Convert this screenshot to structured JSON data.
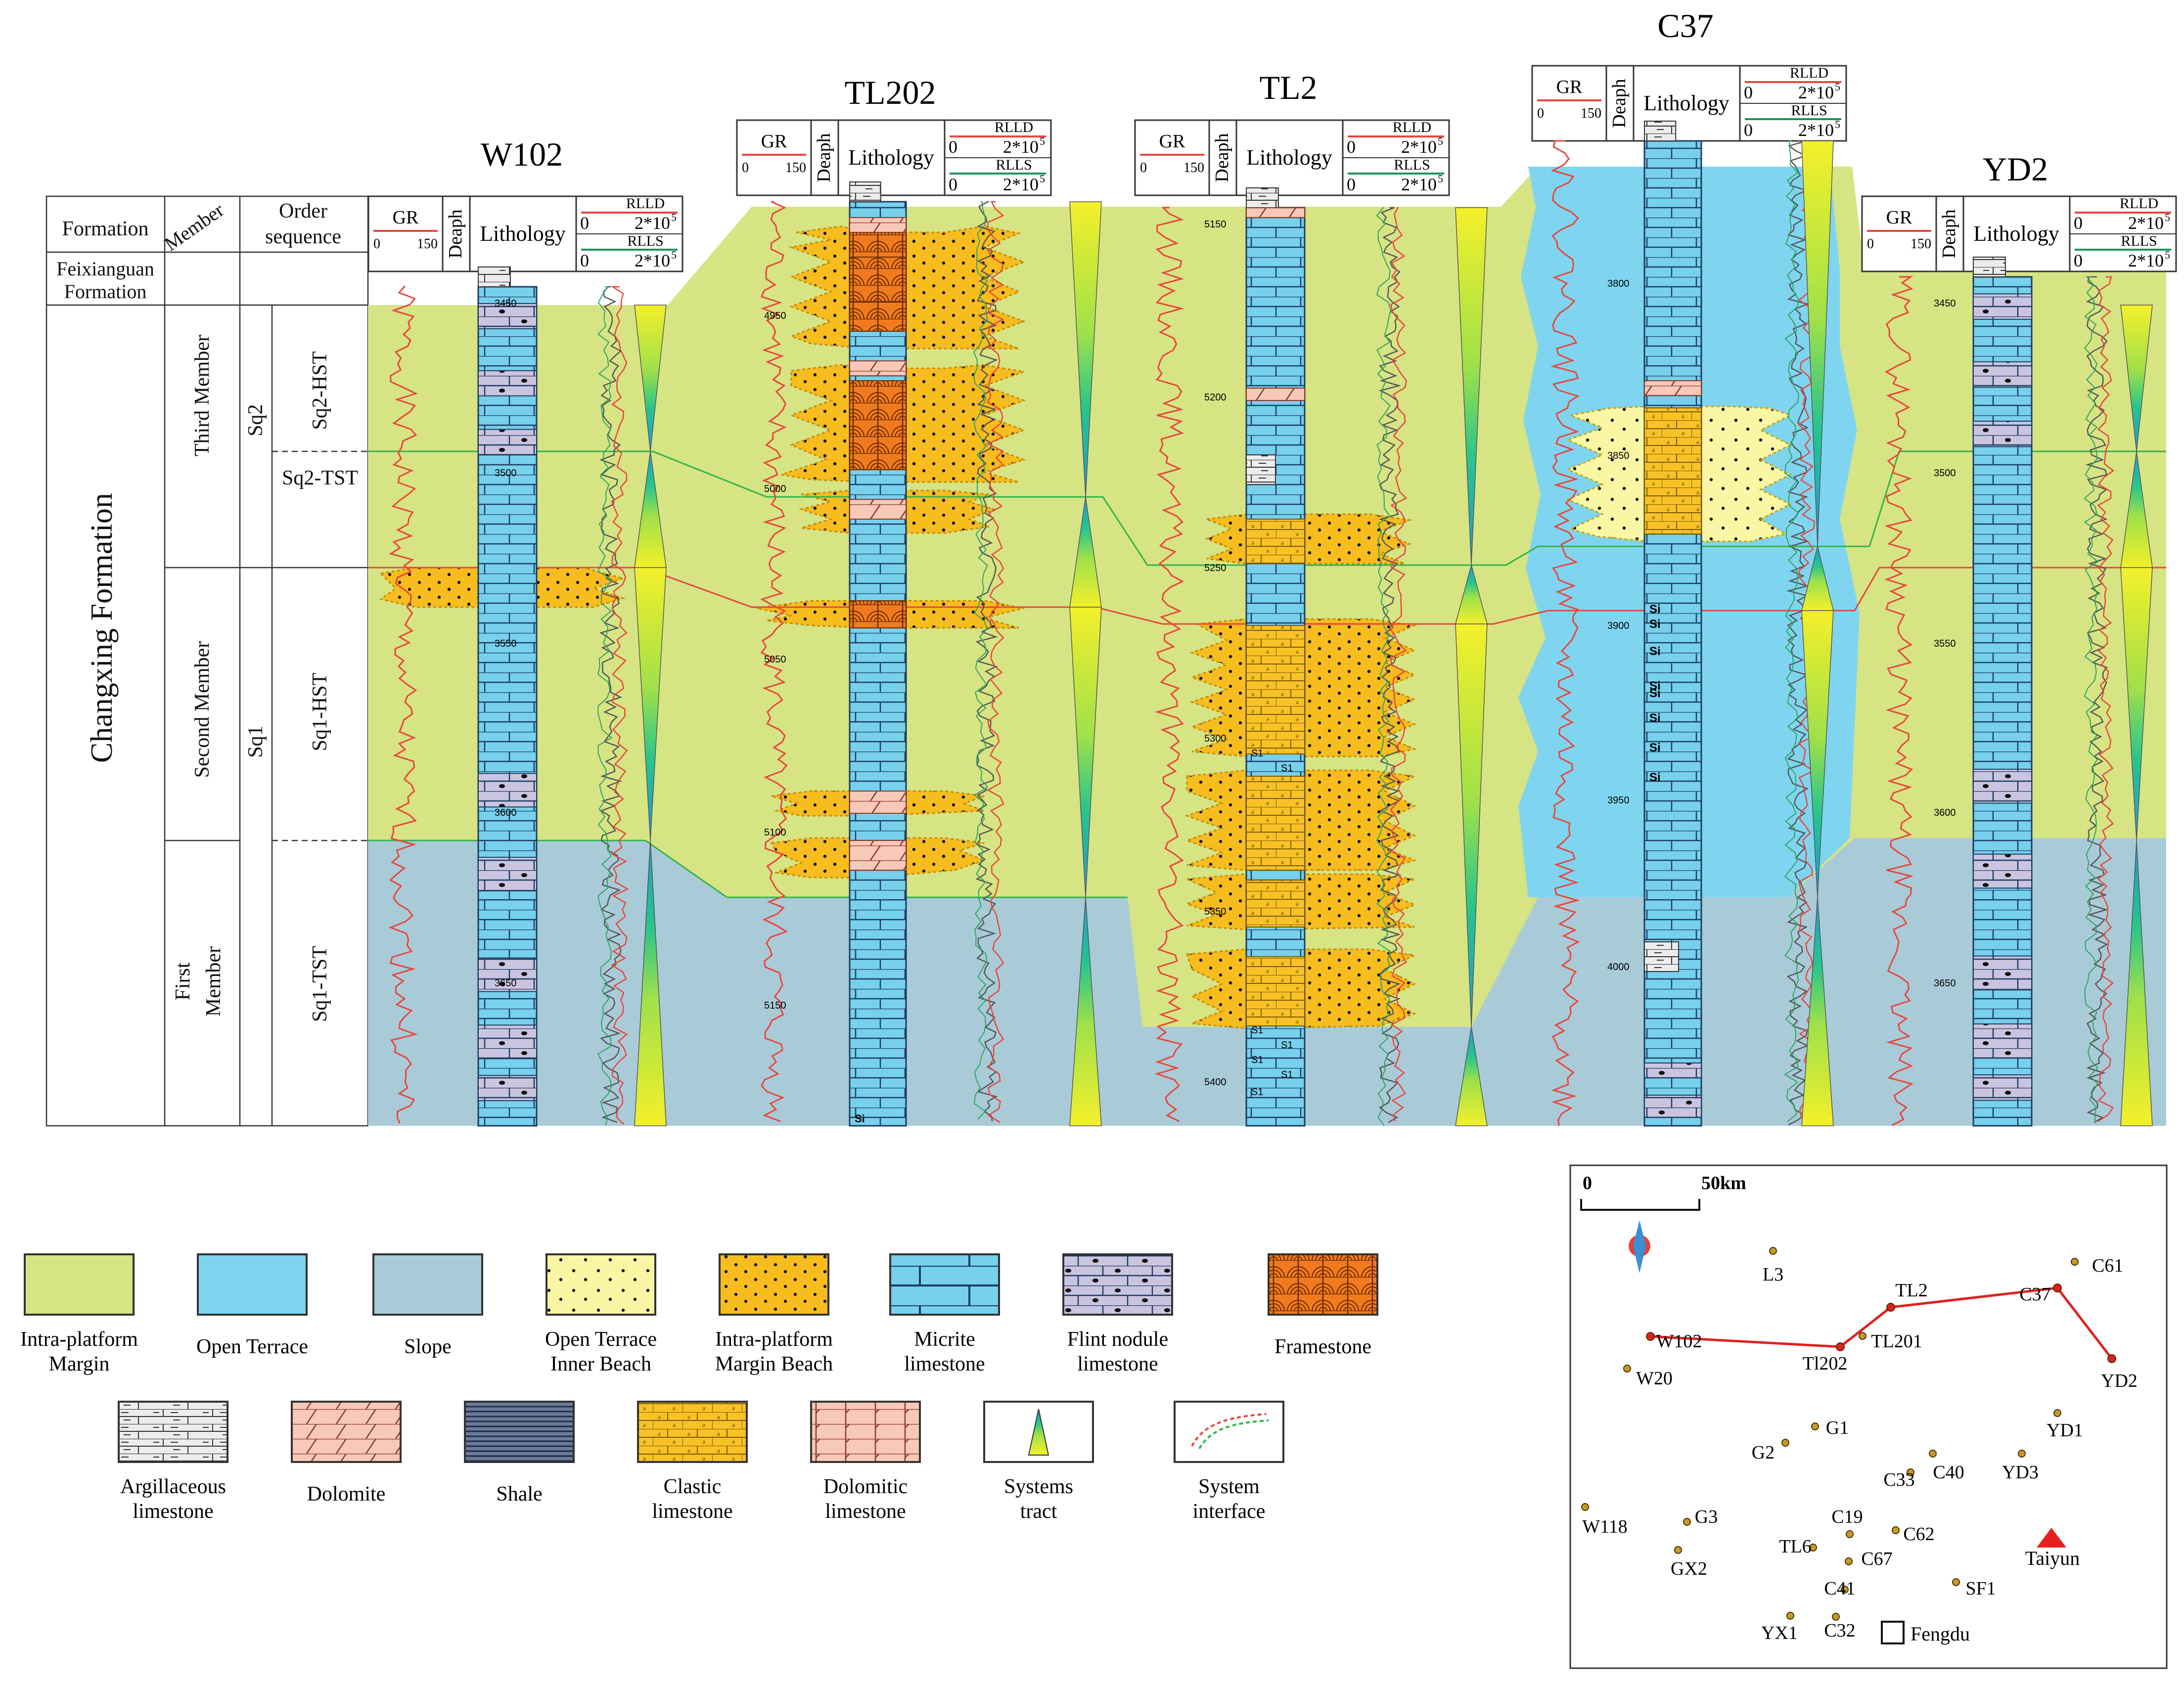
{
  "columns": {
    "formation": "Formation",
    "member": "Member",
    "order_sequence_line1": "Order",
    "order_sequence_line2": "sequence"
  },
  "formations": {
    "feixianguan_line1": "Feixianguan",
    "feixianguan_line2": "Formation",
    "changxing": "Changxing Formation"
  },
  "members": {
    "third": "Third Member",
    "second": "Second Member",
    "first_line1": "First",
    "first_line2": "Member"
  },
  "sequences": {
    "sq2": "Sq2",
    "sq1": "Sq1",
    "sq2_hst": "Sq2-HST",
    "sq2_tst": "Sq2-TST",
    "sq1_hst": "Sq1-HST",
    "sq1_tst": "Sq1-TST"
  },
  "log_header": {
    "gr": "GR",
    "gr_min": "0",
    "gr_max": "150",
    "depth": "Deaph",
    "lithology": "Lithology",
    "rlld": "RLLD",
    "rlls": "RLLS",
    "res_min": "0",
    "res_max": "2*10",
    "res_exp": "5"
  },
  "wells": [
    {
      "name": "W102",
      "depths": [
        "3450",
        "3500",
        "3550",
        "3600",
        "3650"
      ]
    },
    {
      "name": "TL202",
      "depths": [
        "4950",
        "5000",
        "5050",
        "5100",
        "5150"
      ]
    },
    {
      "name": "TL2",
      "depths": [
        "5150",
        "5200",
        "5250",
        "5300",
        "5350",
        "5400"
      ]
    },
    {
      "name": "C37",
      "depths": [
        "3800",
        "3850",
        "3900",
        "3950",
        "4000"
      ]
    },
    {
      "name": "YD2",
      "depths": [
        "3450",
        "3500",
        "3550",
        "3600",
        "3650"
      ]
    }
  ],
  "litho_symbols": {
    "si": "Si",
    "s1": "S1"
  },
  "legend": {
    "intra_platform_margin": [
      "Intra-platform",
      "Margin"
    ],
    "open_terrace": [
      "Open Terrace"
    ],
    "slope": [
      "Slope"
    ],
    "open_terrace_inner_beach": [
      "Open Terrace",
      "Inner Beach"
    ],
    "intra_platform_margin_beach": [
      "Intra-platform",
      "Margin Beach"
    ],
    "micrite_limestone": [
      "Micrite",
      "limestone"
    ],
    "flint_nodule_limestone": [
      "Flint nodule",
      "limestone"
    ],
    "framestone": [
      "Framestone"
    ],
    "argillaceous_limestone": [
      "Argillaceous",
      "limestone"
    ],
    "dolomite": [
      "Dolomite"
    ],
    "shale": [
      "Shale"
    ],
    "clastic_limestone": [
      "Clastic",
      "limestone"
    ],
    "dolomitic_limestone": [
      "Dolomitic",
      "limestone"
    ],
    "systems_tract": [
      "Systems",
      "tract"
    ],
    "system_interface": [
      "System",
      "interface"
    ]
  },
  "colors": {
    "intra_platform_margin": "#d6e484",
    "open_terrace": "#7fd5f0",
    "slope": "#a9cbd8",
    "inner_beach": "#fbf6a4",
    "margin_beach": "#f7bd1e",
    "micrite": "#77d0ec",
    "flint": "#cbc4e0",
    "framestone": "#f07b1f",
    "argillaceous": "#e8e8e8",
    "dolomite": "#f8c8b8",
    "shale": "#5a6b87",
    "clastic": "#f8c227",
    "interface_green": "#34b34a",
    "interface_red": "#e8453c"
  },
  "map": {
    "scale_zero": "0",
    "scale_label": "50km",
    "wells": [
      "L3",
      "C61",
      "TL2",
      "C37",
      "W102",
      "Tl202",
      "TL201",
      "YD2",
      "W20",
      "YD1",
      "G1",
      "G2",
      "C40",
      "C33",
      "YD3",
      "W118",
      "G3",
      "C19",
      "C62",
      "TL6",
      "GX2",
      "C67",
      "C41",
      "SF1",
      "YX1",
      "C32"
    ],
    "cities": [
      "Taiyun",
      "Fengdu"
    ]
  }
}
